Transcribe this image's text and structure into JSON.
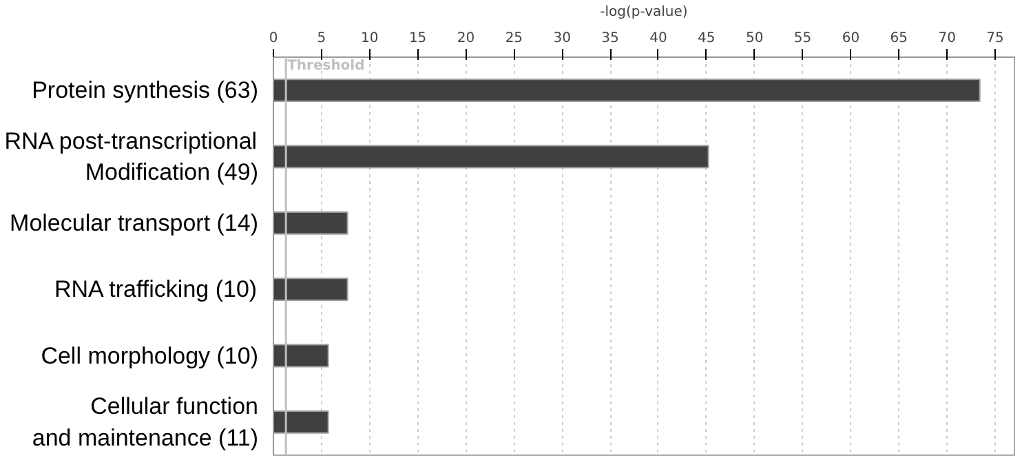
{
  "chart_data": {
    "type": "bar",
    "orientation": "horizontal",
    "xlabel": "-log(p-value)",
    "categories": [
      "Protein synthesis (63)",
      "RNA post-transcriptional\nModification (49)",
      "Molecular transport (14)",
      "RNA trafficking (10)",
      "Cell morphology (10)",
      "Cellular function\nand maintenance (11)"
    ],
    "values": [
      73.4,
      45.2,
      7.7,
      7.7,
      5.7,
      5.7
    ],
    "color": "#404040",
    "xlim": [
      0,
      77
    ],
    "xticks": [
      0,
      5,
      10,
      15,
      20,
      25,
      30,
      35,
      40,
      45,
      50,
      55,
      60,
      65,
      70,
      75
    ],
    "grid": "x",
    "ref_lines": [
      {
        "axis": "x",
        "value": 1.3,
        "label": "Threshold",
        "color": "#c0c0c0"
      }
    ]
  }
}
